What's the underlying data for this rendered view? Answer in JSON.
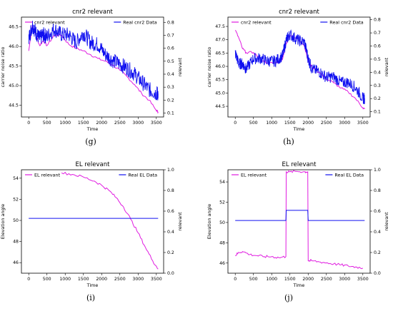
{
  "colors": {
    "relevant": "#e01ce0",
    "real": "#1010f0"
  },
  "chart_data": [
    {
      "type": "line",
      "caption": "(g)",
      "title": "cnr2 relevant",
      "xlabel": "Time",
      "ylabel": "carrier noise ratio",
      "y2label": "relevant",
      "xlim": [
        -200,
        3700
      ],
      "ylim": [
        44.2,
        46.75
      ],
      "y2lim": [
        0.07,
        0.84
      ],
      "xticks": [
        "0",
        "500",
        "1000",
        "1500",
        "2000",
        "2500",
        "3000",
        "3500"
      ],
      "yticks": [
        "44.5",
        "45.0",
        "45.5",
        "46.0",
        "46.5"
      ],
      "y2ticks": [
        "0.1",
        "0.2",
        "0.3",
        "0.4",
        "0.5",
        "0.6",
        "0.7",
        "0.8"
      ],
      "grid": false,
      "series": [
        {
          "name": "cnr2 relevant",
          "axis": "right",
          "color": "relevant",
          "x": [
            0,
            100,
            200,
            300,
            400,
            500,
            700,
            900,
            1100,
            1300,
            1500,
            1700,
            1900,
            2100,
            2300,
            2500,
            2700,
            2900,
            3100,
            3300,
            3500,
            3550
          ],
          "y": [
            0.58,
            0.78,
            0.7,
            0.62,
            0.66,
            0.62,
            0.7,
            0.7,
            0.63,
            0.6,
            0.58,
            0.55,
            0.52,
            0.5,
            0.47,
            0.43,
            0.38,
            0.32,
            0.25,
            0.2,
            0.12,
            0.11
          ]
        },
        {
          "name": "Real cnr2 Data",
          "axis": "left",
          "color": "real",
          "x": [
            0,
            100,
            200,
            300,
            400,
            500,
            700,
            900,
            1100,
            1300,
            1500,
            1700,
            1900,
            2100,
            2300,
            2500,
            2700,
            2900,
            3100,
            3300,
            3500,
            3550
          ],
          "y": [
            46.2,
            46.55,
            46.35,
            46.2,
            46.3,
            46.25,
            46.45,
            46.3,
            46.3,
            46.1,
            46.35,
            46.1,
            46.05,
            45.8,
            45.65,
            45.55,
            45.45,
            45.3,
            45.1,
            44.9,
            44.8,
            44.8
          ],
          "noise": 0.2
        }
      ],
      "legend": [
        "cnr2 relevant",
        "Real cnr2 Data"
      ]
    },
    {
      "type": "line",
      "caption": "(h)",
      "title": "cnr2 relevant",
      "xlabel": "Time",
      "ylabel": "carrier noise ratio",
      "y2label": "relevant",
      "xlim": [
        -200,
        3700
      ],
      "ylim": [
        44.1,
        47.85
      ],
      "y2lim": [
        0.06,
        0.82
      ],
      "xticks": [
        "0",
        "500",
        "1000",
        "1500",
        "2000",
        "2500",
        "3000",
        "3500"
      ],
      "yticks": [
        "44.5",
        "45.0",
        "45.5",
        "46.0",
        "46.5",
        "47.0",
        "47.5"
      ],
      "y2ticks": [
        "0.1",
        "0.2",
        "0.3",
        "0.4",
        "0.5",
        "0.6",
        "0.7",
        "0.8"
      ],
      "grid": false,
      "series": [
        {
          "name": "cnr2 relevant",
          "axis": "right",
          "color": "relevant",
          "x": [
            0,
            100,
            200,
            300,
            500,
            700,
            900,
            1100,
            1300,
            1400,
            1500,
            1700,
            1900,
            2000,
            2100,
            2300,
            2500,
            2700,
            2900,
            3100,
            3300,
            3500,
            3550
          ],
          "y": [
            0.72,
            0.66,
            0.58,
            0.55,
            0.55,
            0.5,
            0.47,
            0.47,
            0.5,
            0.62,
            0.68,
            0.66,
            0.6,
            0.48,
            0.44,
            0.4,
            0.35,
            0.32,
            0.28,
            0.25,
            0.2,
            0.13,
            0.12
          ]
        },
        {
          "name": "Real cnr2 Data",
          "axis": "left",
          "color": "real",
          "x": [
            0,
            100,
            200,
            300,
            500,
            700,
            900,
            1100,
            1300,
            1400,
            1500,
            1700,
            1900,
            2000,
            2100,
            2300,
            2500,
            2700,
            2900,
            3100,
            3300,
            3500,
            3550
          ],
          "y": [
            46.5,
            46.1,
            46.1,
            45.9,
            46.3,
            46.3,
            46.2,
            46.2,
            46.4,
            47.0,
            47.2,
            47.0,
            46.9,
            46.3,
            45.9,
            45.8,
            45.6,
            45.6,
            45.4,
            45.4,
            45.2,
            44.8,
            44.8
          ],
          "noise": 0.22
        }
      ],
      "legend": [
        "cnr2 relevant",
        "Real cnr2 Data"
      ]
    },
    {
      "type": "line",
      "caption": "(i)",
      "title": "EL relevant",
      "xlabel": "Time",
      "ylabel": "Elevation angle",
      "y2label": "relevant",
      "xlim": [
        -200,
        3700
      ],
      "ylim": [
        45.0,
        54.8
      ],
      "y2lim": [
        0.0,
        1.0
      ],
      "xticks": [
        "0",
        "500",
        "1000",
        "1500",
        "2000",
        "2500",
        "3000",
        "3500"
      ],
      "yticks": [
        "46",
        "48",
        "50",
        "52",
        "54"
      ],
      "y2ticks": [
        "0.0",
        "0.2",
        "0.4",
        "0.6",
        "0.8",
        "1.0"
      ],
      "grid": false,
      "series": [
        {
          "name": "EL relevant",
          "axis": "right",
          "color": "relevant",
          "x": [
            900,
            1200,
            1500,
            1800,
            2000,
            2200,
            2400,
            2600,
            2800,
            3000,
            3200,
            3400,
            3550
          ],
          "y": [
            0.97,
            0.955,
            0.93,
            0.89,
            0.85,
            0.8,
            0.73,
            0.64,
            0.52,
            0.39,
            0.25,
            0.12,
            0.04
          ]
        },
        {
          "name": "Real EL Data",
          "axis": "left",
          "color": "real",
          "x": [
            0,
            3550
          ],
          "y": [
            50.2,
            50.2
          ]
        }
      ],
      "legend": [
        "EL relevant",
        "Real EL Data"
      ]
    },
    {
      "type": "line",
      "caption": "(j)",
      "title": "EL relevant",
      "xlabel": "Time",
      "ylabel": "Elevation angle",
      "y2label": "relevant",
      "xlim": [
        -200,
        3700
      ],
      "ylim": [
        45.0,
        55.2
      ],
      "y2lim": [
        0.0,
        1.0
      ],
      "xticks": [
        "0",
        "500",
        "1000",
        "1500",
        "2000",
        "2500",
        "3000",
        "3500"
      ],
      "yticks": [
        "46",
        "48",
        "50",
        "52",
        "54"
      ],
      "y2ticks": [
        "0.0",
        "0.2",
        "0.4",
        "0.6",
        "0.8",
        "1.0"
      ],
      "grid": false,
      "series": [
        {
          "name": "EL relevant",
          "axis": "right",
          "color": "relevant",
          "x": [
            0,
            100,
            200,
            400,
            600,
            800,
            1000,
            1200,
            1390,
            1400,
            1500,
            1700,
            1900,
            1990,
            2000,
            2100,
            2300,
            2500,
            2700,
            2900,
            3100,
            3300,
            3500
          ],
          "y": [
            0.17,
            0.2,
            0.21,
            0.18,
            0.17,
            0.16,
            0.16,
            0.15,
            0.16,
            0.98,
            0.98,
            0.985,
            0.98,
            0.98,
            0.12,
            0.12,
            0.11,
            0.1,
            0.09,
            0.08,
            0.07,
            0.06,
            0.05
          ]
        },
        {
          "name": "Real EL Data",
          "axis": "left",
          "color": "real",
          "x": [
            0,
            1390,
            1400,
            1990,
            2000,
            3550
          ],
          "y": [
            50.2,
            50.2,
            51.2,
            51.2,
            50.2,
            50.2
          ]
        }
      ],
      "legend": [
        "EL relevant",
        "Real EL Data"
      ]
    }
  ]
}
